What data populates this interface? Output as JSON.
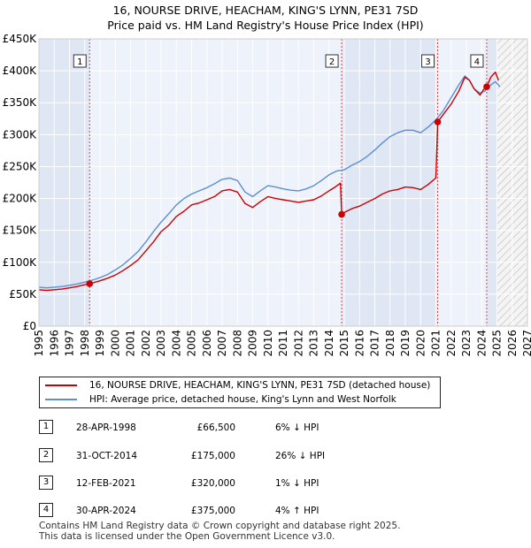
{
  "title_line1": "16, NOURSE DRIVE, HEACHAM, KING'S LYNN, PE31 7SD",
  "title_line2": "Price paid vs. HM Land Registry's House Price Index (HPI)",
  "chart_data": {
    "type": "line",
    "title": "16, NOURSE DRIVE, HEACHAM, KING'S LYNN, PE31 7SD — Price paid vs. HM Land Registry's House Price Index (HPI)",
    "xlim": [
      1995,
      2027
    ],
    "ylim": [
      0,
      450000
    ],
    "y_ticks": [
      0,
      50000,
      100000,
      150000,
      200000,
      250000,
      300000,
      350000,
      400000,
      450000
    ],
    "y_tick_labels": [
      "£0",
      "£50K",
      "£100K",
      "£150K",
      "£200K",
      "£250K",
      "£300K",
      "£350K",
      "£400K",
      "£450K"
    ],
    "x_ticks": [
      1995,
      1996,
      1997,
      1998,
      1999,
      2000,
      2001,
      2002,
      2003,
      2004,
      2005,
      2006,
      2007,
      2008,
      2009,
      2010,
      2011,
      2012,
      2013,
      2014,
      2015,
      2016,
      2017,
      2018,
      2019,
      2020,
      2021,
      2022,
      2023,
      2024,
      2025,
      2026,
      2027
    ],
    "x_tick_labels": [
      "1995",
      "1996",
      "1997",
      "1998",
      "1999",
      "2000",
      "2001",
      "2002",
      "2003",
      "2004",
      "2005",
      "2006",
      "2007",
      "2008",
      "2009",
      "2010",
      "2011",
      "2012",
      "2013",
      "2014",
      "2015",
      "2016",
      "2017",
      "2018",
      "2019",
      "2020",
      "2021",
      "2022",
      "2023",
      "2024",
      "2025",
      "2026",
      "2027"
    ],
    "shaded_regions": [
      {
        "from": 1995,
        "to": 1998.32,
        "color": "#dfe6f4"
      },
      {
        "from": 1998.32,
        "to": 2014.83,
        "color": "#eef2fa"
      },
      {
        "from": 2014.83,
        "to": 2021.12,
        "color": "#dfe6f4"
      },
      {
        "from": 2021.12,
        "to": 2024.33,
        "color": "#eef2fa"
      },
      {
        "from": 2024.33,
        "to": 2025.0,
        "color": "#dfe6f4"
      }
    ],
    "hatched_from": 2025.0,
    "series": [
      {
        "name": "16, NOURSE DRIVE, HEACHAM, KING'S LYNN, PE31 7SD (detached house)",
        "color": "#cc0000",
        "x": [
          1995.0,
          1995.5,
          1996.0,
          1996.5,
          1997.0,
          1997.5,
          1998.0,
          1998.32,
          1998.7,
          1999.0,
          1999.5,
          2000.0,
          2000.5,
          2001.0,
          2001.5,
          2002.0,
          2002.5,
          2003.0,
          2003.5,
          2004.0,
          2004.5,
          2005.0,
          2005.5,
          2006.0,
          2006.5,
          2007.0,
          2007.5,
          2008.0,
          2008.5,
          2009.0,
          2009.5,
          2010.0,
          2010.5,
          2011.0,
          2011.5,
          2012.0,
          2012.5,
          2013.0,
          2013.5,
          2014.0,
          2014.4,
          2014.75,
          2014.83,
          2015.0,
          2015.5,
          2016.0,
          2016.5,
          2017.0,
          2017.5,
          2018.0,
          2018.5,
          2019.0,
          2019.5,
          2020.0,
          2020.5,
          2021.0,
          2021.08,
          2021.12,
          2021.5,
          2022.0,
          2022.5,
          2022.9,
          2023.2,
          2023.5,
          2023.9,
          2024.1,
          2024.33,
          2024.6,
          2024.9,
          2025.1
        ],
        "y": [
          57000,
          56000,
          57000,
          58000,
          60000,
          62000,
          65000,
          66500,
          69000,
          71000,
          75000,
          80000,
          87000,
          95000,
          104000,
          118000,
          132000,
          148000,
          158000,
          172000,
          180000,
          190000,
          193000,
          198000,
          203000,
          212000,
          214000,
          210000,
          192000,
          186000,
          195000,
          203000,
          200000,
          198000,
          196000,
          194000,
          196000,
          198000,
          204000,
          212000,
          218000,
          224000,
          175000,
          178000,
          184000,
          188000,
          194000,
          200000,
          207000,
          212000,
          214000,
          218000,
          217000,
          214000,
          222000,
          232000,
          290000,
          320000,
          332000,
          348000,
          368000,
          390000,
          385000,
          372000,
          362000,
          370000,
          375000,
          390000,
          398000,
          385000
        ]
      },
      {
        "name": "HPI: Average price, detached house, King's Lynn and West Norfolk",
        "color": "#5b8ed6",
        "x": [
          1995.0,
          1995.5,
          1996.0,
          1996.5,
          1997.0,
          1997.5,
          1998.0,
          1998.5,
          1999.0,
          1999.5,
          2000.0,
          2000.5,
          2001.0,
          2001.5,
          2002.0,
          2002.5,
          2003.0,
          2003.5,
          2004.0,
          2004.5,
          2005.0,
          2005.5,
          2006.0,
          2006.5,
          2007.0,
          2007.5,
          2008.0,
          2008.5,
          2009.0,
          2009.5,
          2010.0,
          2010.5,
          2011.0,
          2011.5,
          2012.0,
          2012.5,
          2013.0,
          2013.5,
          2014.0,
          2014.5,
          2015.0,
          2015.5,
          2016.0,
          2016.5,
          2017.0,
          2017.5,
          2018.0,
          2018.5,
          2019.0,
          2019.5,
          2020.0,
          2020.5,
          2021.0,
          2021.5,
          2022.0,
          2022.5,
          2022.9,
          2023.2,
          2023.5,
          2023.9,
          2024.2,
          2024.6,
          2024.9,
          2025.2
        ],
        "y": [
          61000,
          60000,
          61000,
          62000,
          64000,
          66000,
          69000,
          72000,
          76000,
          81000,
          88000,
          96000,
          106000,
          117000,
          132000,
          148000,
          163000,
          176000,
          190000,
          200000,
          207000,
          212000,
          217000,
          223000,
          230000,
          232000,
          228000,
          210000,
          203000,
          212000,
          220000,
          218000,
          215000,
          213000,
          212000,
          215000,
          220000,
          228000,
          237000,
          243000,
          245000,
          252000,
          258000,
          266000,
          276000,
          287000,
          297000,
          303000,
          307000,
          307000,
          303000,
          312000,
          323000,
          338000,
          358000,
          378000,
          392000,
          385000,
          372000,
          365000,
          368000,
          378000,
          383000,
          375000
        ]
      }
    ],
    "sales": [
      {
        "num": "1",
        "x": 1998.32,
        "y": 66500
      },
      {
        "num": "2",
        "x": 2014.83,
        "y": 175000
      },
      {
        "num": "3",
        "x": 2021.12,
        "y": 320000
      },
      {
        "num": "4",
        "x": 2024.33,
        "y": 375000
      }
    ]
  },
  "legend": {
    "property_label": "16, NOURSE DRIVE, HEACHAM, KING'S LYNN, PE31 7SD (detached house)",
    "hpi_label": "HPI: Average price, detached house, King's Lynn and West Norfolk",
    "property_color": "#cc0000",
    "hpi_color": "#5b8ed6"
  },
  "transactions": [
    {
      "num": "1",
      "date": "28-APR-1998",
      "price": "£66,500",
      "hpi": "6% ↓ HPI"
    },
    {
      "num": "2",
      "date": "31-OCT-2014",
      "price": "£175,000",
      "hpi": "26% ↓ HPI"
    },
    {
      "num": "3",
      "date": "12-FEB-2021",
      "price": "£320,000",
      "hpi": "1% ↓ HPI"
    },
    {
      "num": "4",
      "date": "30-APR-2024",
      "price": "£375,000",
      "hpi": "4% ↑ HPI"
    }
  ],
  "footer": {
    "line1": "Contains HM Land Registry data © Crown copyright and database right 2025.",
    "line2": "This data is licensed under the Open Government Licence v3.0."
  }
}
